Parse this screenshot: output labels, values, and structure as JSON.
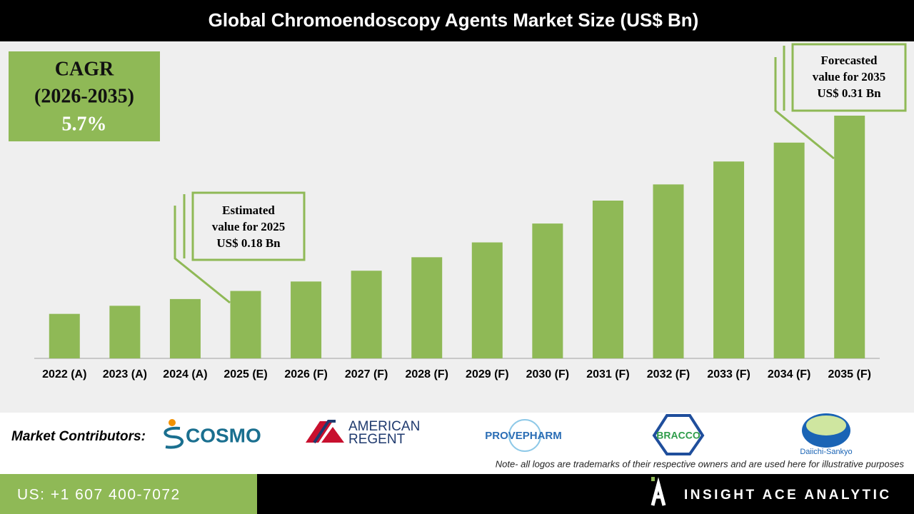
{
  "chart_data": {
    "type": "bar",
    "title": "Global Chromoendoscopy Agents Market Size (US$ Bn)",
    "categories": [
      "2022 (A)",
      "2023 (A)",
      "2024 (A)",
      "2025 (E)",
      "2026 (F)",
      "2027 (F)",
      "2028 (F)",
      "2029 (F)",
      "2030 (F)",
      "2031 (F)",
      "2032 (F)",
      "2033 (F)",
      "2034 (F)",
      "2035 (F)"
    ],
    "values": [
      0.163,
      0.169,
      0.174,
      0.18,
      0.187,
      0.195,
      0.205,
      0.216,
      0.23,
      0.247,
      0.259,
      0.276,
      0.29,
      0.31
    ],
    "color": "#8fb956",
    "ylim": [
      0.13,
      0.31
    ]
  },
  "cagr_box": {
    "lines": [
      "CAGR",
      "(2026-2035)",
      "5.7%"
    ]
  },
  "callouts": [
    {
      "lines": [
        "Estimated",
        "value for 2025",
        "US$ 0.18 Bn"
      ]
    },
    {
      "lines": [
        "Forecasted",
        "value for 2035",
        "US$ 0.31 Bn"
      ]
    }
  ],
  "contributors": {
    "label": "Market Contributors:",
    "logos": [
      "COSMO",
      "AMERICAN",
      "REGENT",
      "PROVEPHARM",
      "BRACCO",
      "Daiichi-Sankyo"
    ]
  },
  "note": "Note- all logos are trademarks of their respective owners and are used here for illustrative purposes",
  "footer": {
    "phone": "US: +1 607 400-7072",
    "brand": "INSIGHT ACE ANALYTIC"
  }
}
